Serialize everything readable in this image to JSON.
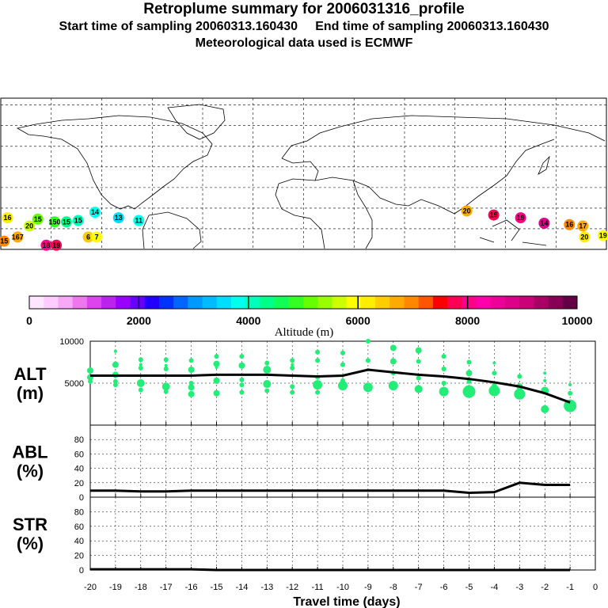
{
  "header": {
    "title": "Retroplume summary for 2006031316_profile",
    "start_label": "Start time of sampling 20060313.160430",
    "end_label": "End time of sampling 20060313.160430",
    "met_label": "Meteorological data used is ECMWF"
  },
  "colors": {
    "marker": "#22ee77",
    "line": "#000000",
    "palette": [
      "#ffe6ff",
      "#ffccff",
      "#f7a8f7",
      "#ee77ee",
      "#dd44ee",
      "#bb22ee",
      "#9900ff",
      "#6600ff",
      "#2200ff",
      "#0033ff",
      "#0066ff",
      "#0099ff",
      "#00bbff",
      "#00ddff",
      "#00ffee",
      "#00ffbb",
      "#00ff88",
      "#11ff55",
      "#33ff22",
      "#66ff00",
      "#99ff00",
      "#ccff00",
      "#ffff00",
      "#ffee00",
      "#ffcc00",
      "#ffaa00",
      "#ff8800",
      "#ff5500",
      "#ff0000",
      "#ff0055",
      "#ff0088",
      "#ff00aa",
      "#ee0099",
      "#dd0088",
      "#cc0077",
      "#aa0066",
      "#880055",
      "#660044"
    ]
  },
  "map_labels": [
    {
      "text": "15",
      "lon": -178,
      "lat": -24,
      "color": "#ff8800"
    },
    {
      "text": "16",
      "lon": -176,
      "lat": -7,
      "color": "#ffee00"
    },
    {
      "text": "167",
      "lon": -170,
      "lat": -21,
      "color": "#ffaa00"
    },
    {
      "text": "20",
      "lon": -163,
      "lat": -13,
      "color": "#ccff00"
    },
    {
      "text": "15",
      "lon": -158,
      "lat": -8,
      "color": "#66ff00"
    },
    {
      "text": "18",
      "lon": -153,
      "lat": -27,
      "color": "#ff0088"
    },
    {
      "text": "19",
      "lon": -147,
      "lat": -27,
      "color": "#ff0055"
    },
    {
      "text": "150",
      "lon": -148,
      "lat": -10,
      "color": "#33ff22"
    },
    {
      "text": "15",
      "lon": -141,
      "lat": -10,
      "color": "#00ff88"
    },
    {
      "text": "15",
      "lon": -134,
      "lat": -9,
      "color": "#00ffbb"
    },
    {
      "text": "14",
      "lon": -124,
      "lat": -3,
      "color": "#00ffee"
    },
    {
      "text": "6",
      "lon": -128,
      "lat": -21,
      "color": "#ffcc00"
    },
    {
      "text": "7",
      "lon": -123,
      "lat": -21,
      "color": "#ffff00"
    },
    {
      "text": "13",
      "lon": -110,
      "lat": -7,
      "color": "#00ddff"
    },
    {
      "text": "11",
      "lon": -98,
      "lat": -9,
      "color": "#00ffee"
    },
    {
      "text": "20",
      "lon": 97,
      "lat": -2,
      "color": "#ffaa00"
    },
    {
      "text": "19",
      "lon": 113,
      "lat": -5,
      "color": "#ff0055"
    },
    {
      "text": "19",
      "lon": 129,
      "lat": -7,
      "color": "#ff0088"
    },
    {
      "text": "14",
      "lon": 143,
      "lat": -11,
      "color": "#dd0088"
    },
    {
      "text": "16",
      "lon": 158,
      "lat": -12,
      "color": "#ff8800"
    },
    {
      "text": "17",
      "lon": 166,
      "lat": -13,
      "color": "#ffaa00"
    },
    {
      "text": "20",
      "lon": 167,
      "lat": -21,
      "color": "#ffee00"
    },
    {
      "text": "19",
      "lon": 178,
      "lat": -20,
      "color": "#ffff00"
    }
  ],
  "colorbar": {
    "tick_labels": [
      "0",
      "2000",
      "4000",
      "6000",
      "8000",
      "10000"
    ],
    "label": "Altitude (m)"
  },
  "chart_data": [
    {
      "type": "line",
      "name": "ALT",
      "ylabel": "ALT",
      "yunit": "(m)",
      "ylim": [
        0,
        10000
      ],
      "yticks": [
        5000,
        10000
      ],
      "x": [
        -20,
        -19,
        -18,
        -17,
        -16,
        -15,
        -14,
        -13,
        -12,
        -11,
        -10,
        -9,
        -8,
        -7,
        -6,
        -5,
        -4,
        -3,
        -2,
        -1
      ],
      "values": [
        5900,
        5900,
        5900,
        5900,
        5900,
        6000,
        6000,
        6000,
        5900,
        5800,
        5900,
        6600,
        6300,
        6000,
        5800,
        5500,
        5100,
        4600,
        3800,
        2700
      ],
      "scatter": [
        {
          "x": -20,
          "y": 6500,
          "s": 4
        },
        {
          "x": -20,
          "y": 5700,
          "s": 4
        },
        {
          "x": -20,
          "y": 5200,
          "s": 3
        },
        {
          "x": -19,
          "y": 7200,
          "s": 4
        },
        {
          "x": -19,
          "y": 6000,
          "s": 4
        },
        {
          "x": -19,
          "y": 5200,
          "s": 3
        },
        {
          "x": -19,
          "y": 4800,
          "s": 3
        },
        {
          "x": -19,
          "y": 8800,
          "s": 2
        },
        {
          "x": -18,
          "y": 7800,
          "s": 3
        },
        {
          "x": -18,
          "y": 6800,
          "s": 3
        },
        {
          "x": -18,
          "y": 5000,
          "s": 5
        },
        {
          "x": -18,
          "y": 4200,
          "s": 3
        },
        {
          "x": -18,
          "y": 7200,
          "s": 2
        },
        {
          "x": -17,
          "y": 7800,
          "s": 3
        },
        {
          "x": -17,
          "y": 6700,
          "s": 3
        },
        {
          "x": -17,
          "y": 4600,
          "s": 5
        },
        {
          "x": -17,
          "y": 4000,
          "s": 3
        },
        {
          "x": -17,
          "y": 7100,
          "s": 2
        },
        {
          "x": -16,
          "y": 7700,
          "s": 3
        },
        {
          "x": -16,
          "y": 6600,
          "s": 4
        },
        {
          "x": -16,
          "y": 5000,
          "s": 3
        },
        {
          "x": -16,
          "y": 4500,
          "s": 4
        },
        {
          "x": -16,
          "y": 3700,
          "s": 4
        },
        {
          "x": -15,
          "y": 8200,
          "s": 3
        },
        {
          "x": -15,
          "y": 7300,
          "s": 4
        },
        {
          "x": -15,
          "y": 5300,
          "s": 4
        },
        {
          "x": -15,
          "y": 3800,
          "s": 4
        },
        {
          "x": -15,
          "y": 6900,
          "s": 2
        },
        {
          "x": -14,
          "y": 8200,
          "s": 3
        },
        {
          "x": -14,
          "y": 7100,
          "s": 4
        },
        {
          "x": -14,
          "y": 5400,
          "s": 3
        },
        {
          "x": -14,
          "y": 4800,
          "s": 3
        },
        {
          "x": -14,
          "y": 3900,
          "s": 3
        },
        {
          "x": -13,
          "y": 7400,
          "s": 3
        },
        {
          "x": -13,
          "y": 6600,
          "s": 5
        },
        {
          "x": -13,
          "y": 4900,
          "s": 5
        },
        {
          "x": -13,
          "y": 4100,
          "s": 3
        },
        {
          "x": -12,
          "y": 7700,
          "s": 3
        },
        {
          "x": -12,
          "y": 6800,
          "s": 3
        },
        {
          "x": -12,
          "y": 4600,
          "s": 3
        },
        {
          "x": -12,
          "y": 3900,
          "s": 3
        },
        {
          "x": -12,
          "y": 7200,
          "s": 2
        },
        {
          "x": -11,
          "y": 8700,
          "s": 3
        },
        {
          "x": -11,
          "y": 7700,
          "s": 3
        },
        {
          "x": -11,
          "y": 5700,
          "s": 3
        },
        {
          "x": -11,
          "y": 4800,
          "s": 6
        },
        {
          "x": -11,
          "y": 3900,
          "s": 3
        },
        {
          "x": -10,
          "y": 8600,
          "s": 3
        },
        {
          "x": -10,
          "y": 7200,
          "s": 3
        },
        {
          "x": -10,
          "y": 5300,
          "s": 3
        },
        {
          "x": -10,
          "y": 4700,
          "s": 6
        },
        {
          "x": -9,
          "y": 10000,
          "s": 3
        },
        {
          "x": -9,
          "y": 7700,
          "s": 3
        },
        {
          "x": -9,
          "y": 6600,
          "s": 2
        },
        {
          "x": -9,
          "y": 4500,
          "s": 6
        },
        {
          "x": -8,
          "y": 9200,
          "s": 4
        },
        {
          "x": -8,
          "y": 7600,
          "s": 4
        },
        {
          "x": -8,
          "y": 6200,
          "s": 3
        },
        {
          "x": -8,
          "y": 4700,
          "s": 6
        },
        {
          "x": -7,
          "y": 8900,
          "s": 4
        },
        {
          "x": -7,
          "y": 7600,
          "s": 3
        },
        {
          "x": -7,
          "y": 5600,
          "s": 3
        },
        {
          "x": -7,
          "y": 4300,
          "s": 5
        },
        {
          "x": -6,
          "y": 8200,
          "s": 3
        },
        {
          "x": -6,
          "y": 6700,
          "s": 3
        },
        {
          "x": -6,
          "y": 5000,
          "s": 3
        },
        {
          "x": -6,
          "y": 4000,
          "s": 6
        },
        {
          "x": -5,
          "y": 7500,
          "s": 3
        },
        {
          "x": -5,
          "y": 6200,
          "s": 4
        },
        {
          "x": -5,
          "y": 5200,
          "s": 3
        },
        {
          "x": -5,
          "y": 4000,
          "s": 8
        },
        {
          "x": -4,
          "y": 7400,
          "s": 2
        },
        {
          "x": -4,
          "y": 6200,
          "s": 3
        },
        {
          "x": -4,
          "y": 4800,
          "s": 3
        },
        {
          "x": -4,
          "y": 4100,
          "s": 7
        },
        {
          "x": -3,
          "y": 5800,
          "s": 3
        },
        {
          "x": -3,
          "y": 4600,
          "s": 4
        },
        {
          "x": -3,
          "y": 3700,
          "s": 7
        },
        {
          "x": -2,
          "y": 6200,
          "s": 2
        },
        {
          "x": -2,
          "y": 5300,
          "s": 2
        },
        {
          "x": -2,
          "y": 4100,
          "s": 5
        },
        {
          "x": -2,
          "y": 1900,
          "s": 5
        },
        {
          "x": -1,
          "y": 4800,
          "s": 2
        },
        {
          "x": -1,
          "y": 3800,
          "s": 3
        },
        {
          "x": -1,
          "y": 2300,
          "s": 8
        }
      ]
    },
    {
      "type": "line",
      "name": "ABL",
      "ylabel": "ABL",
      "yunit": "(%)",
      "ylim": [
        0,
        100
      ],
      "yticks": [
        0,
        20,
        40,
        60,
        80
      ],
      "x": [
        -20,
        -19,
        -18,
        -17,
        -16,
        -15,
        -14,
        -13,
        -12,
        -11,
        -10,
        -9,
        -8,
        -7,
        -6,
        -5,
        -4,
        -3,
        -2,
        -1
      ],
      "values": [
        9,
        9,
        8,
        8,
        9,
        9,
        9,
        9,
        9,
        9,
        9,
        9,
        9,
        9,
        9,
        6,
        7,
        20,
        17,
        17
      ]
    },
    {
      "type": "line",
      "name": "STR",
      "ylabel": "STR",
      "yunit": "(%)",
      "ylim": [
        0,
        100
      ],
      "yticks": [
        0,
        20,
        40,
        60,
        80
      ],
      "x": [
        -20,
        -19,
        -18,
        -17,
        -16,
        -15,
        -14,
        -13,
        -12,
        -11,
        -10,
        -9,
        -8,
        -7,
        -6,
        -5,
        -4,
        -3,
        -2,
        -1
      ],
      "values": [
        1,
        1,
        1,
        1,
        1,
        0,
        0,
        0,
        0,
        0,
        0,
        0,
        0,
        0,
        0,
        0,
        0,
        0,
        0,
        0
      ]
    }
  ],
  "xaxis": {
    "xlim": [
      -20,
      0
    ],
    "ticks": [
      "-20",
      "-19",
      "-18",
      "-17",
      "-16",
      "-15",
      "-14",
      "-13",
      "-12",
      "-11",
      "-10",
      "-9",
      "-8",
      "-7",
      "-6",
      "-5",
      "-4",
      "-3",
      "-2",
      "-1",
      "0"
    ],
    "label": "Travel time (days)"
  }
}
